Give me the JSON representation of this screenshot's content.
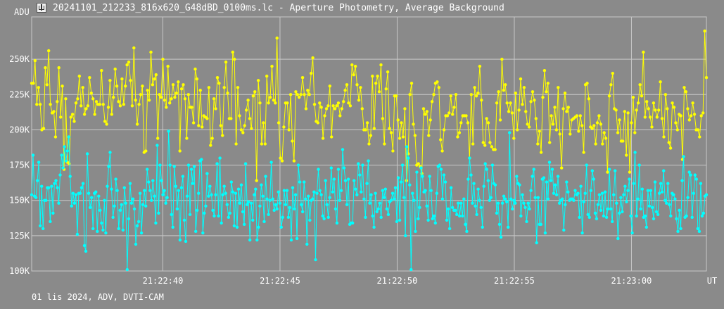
{
  "window": {
    "title": "20241101_212233_816x620_G48dBD_0100ms.lc - Aperture Photometry, Average Background",
    "icon": "lightcurve-app-icon"
  },
  "footer": {
    "text": "01 lis 2024, ADV, DVTI-CAM"
  },
  "colors": {
    "background": "#8a8a8a",
    "grid": "#c8c8c8",
    "series_target": "#ffff00",
    "series_comparison": "#00ffff",
    "text": "#ffffff"
  },
  "chart_data": {
    "type": "line",
    "yunit": "ADU",
    "xunit": "UT",
    "ylim": [
      100000,
      280000
    ],
    "xlim": [
      "21:22:34.4",
      "21:23:03.2"
    ],
    "grid": true,
    "yticks": [
      {
        "value": 100000,
        "label": "100K"
      },
      {
        "value": 125000,
        "label": "125K"
      },
      {
        "value": 150000,
        "label": "150K"
      },
      {
        "value": 175000,
        "label": "175K"
      },
      {
        "value": 200000,
        "label": "200K"
      },
      {
        "value": 225000,
        "label": "225K"
      },
      {
        "value": 250000,
        "label": "250K"
      }
    ],
    "xticks": [
      {
        "value": "21:22:40",
        "label": "21:22:40"
      },
      {
        "value": "21:22:45",
        "label": "21:22:45"
      },
      {
        "value": "21:22:50",
        "label": "21:22:50"
      },
      {
        "value": "21:22:55",
        "label": "21:22:55"
      },
      {
        "value": "21:23:00",
        "label": "21:23:00"
      }
    ],
    "time_start": "21:22:34.4",
    "time_end": "21:23:03.2",
    "series": [
      {
        "color": "#ffff00",
        "values": [
          233000,
          233000,
          249000,
          218000,
          230000,
          218000,
          200000,
          201000,
          244000,
          232000,
          256000,
          218000,
          212000,
          213000,
          195000,
          220000,
          244000,
          209000,
          231000,
          172000,
          222000,
          177000,
          176000,
          209000,
          211000,
          206000,
          219000,
          222000,
          238000,
          217000,
          230000,
          211000,
          215000,
          217000,
          237000,
          226000,
          222000,
          211000,
          220000,
          218000,
          218000,
          242000,
          218000,
          206000,
          204000,
          216000,
          235000,
          211000,
          223000,
          243000,
          231000,
          220000,
          217000,
          236000,
          218000,
          231000,
          246000,
          248000,
          235000,
          217000,
          258000,
          221000,
          204000,
          218000,
          225000,
          231000,
          184000,
          185000,
          228000,
          221000,
          255000,
          232000,
          236000,
          239000,
          194000,
          225000,
          223000,
          250000,
          221000,
          216000,
          245000,
          219000,
          222000,
          232000,
          223000,
          226000,
          234000,
          185000,
          229000,
          232000,
          222000,
          194000,
          225000,
          216000,
          216000,
          205000,
          243000,
          236000,
          203000,
          228000,
          202000,
          210000,
          209000,
          208000,
          230000,
          189000,
          194000,
          222000,
          215000,
          237000,
          233000,
          203000,
          196000,
          230000,
          248000,
          226000,
          208000,
          208000,
          255000,
          250000,
          190000,
          230000,
          210000,
          200000,
          198000,
          203000,
          214000,
          221000,
          208000,
          201000,
          224000,
          227000,
          164000,
          235000,
          219000,
          190000,
          205000,
          190000,
          238000,
          219000,
          223000,
          245000,
          221000,
          219000,
          265000,
          205000,
          180000,
          178000,
          202000,
          219000,
          219000,
          200000,
          225000,
          192000,
          178000,
          227000,
          225000,
          223000,
          225000,
          237000,
          225000,
          215000,
          228000,
          225000,
          240000,
          251000,
          218000,
          206000,
          205000,
          219000,
          216000,
          194000,
          210000,
          215000,
          217000,
          231000,
          195000,
          217000,
          215000,
          217000,
          219000,
          210000,
          215000,
          220000,
          228000,
          232000,
          219000,
          217000,
          246000,
          239000,
          245000,
          232000,
          221000,
          230000,
          215000,
          200000,
          200000,
          205000,
          190000,
          196000,
          238000,
          201000,
          233000,
          238000,
          227000,
          246000,
          208000,
          190000,
          229000,
          241000,
          201000,
          198000,
          185000,
          224000,
          224000,
          207000,
          194000,
          205000,
          195000,
          215000,
          164000,
          183000,
          225000,
          233000,
          204000,
          196000,
          175000,
          176000,
          174000,
          169000,
          215000,
          211000,
          213000,
          196000,
          207000,
          220000,
          225000,
          233000,
          234000,
          230000,
          193000,
          185000,
          200000,
          210000,
          210000,
          212000,
          224000,
          211000,
          216000,
          225000,
          195000,
          198000,
          205000,
          210000,
          210000,
          210000,
          205000,
          180000,
          225000,
          190000,
          230000,
          224000,
          226000,
          245000,
          221000,
          191000,
          189000,
          208000,
          205000,
          191000,
          188000,
          186000,
          186000,
          219000,
          227000,
          207000,
          250000,
          228000,
          232000,
          219000,
          213000,
          219000,
          212000,
          194000,
          226000,
          200000,
          214000,
          236000,
          218000,
          230000,
          213000,
          204000,
          202000,
          220000,
          227000,
          221000,
          208000,
          190000,
          199000,
          184000,
          223000,
          242000,
          227000,
          233000,
          191000,
          210000,
          204000,
          216000,
          200000,
          230000,
          197000,
          173000,
          215000,
          226000,
          213000,
          216000,
          197000,
          207000,
          208000,
          209000,
          210000,
          199000,
          210000,
          203000,
          184000,
          232000,
          233000,
          222000,
          202000,
          201000,
          203000,
          190000,
          205000,
          210000,
          204000,
          190000,
          198000,
          194000,
          170000,
          224000,
          232000,
          240000,
          215000,
          214000,
          198000,
          207000,
          192000,
          192000,
          213000,
          182000,
          212000,
          170000,
          205000,
          223000,
          198000,
          214000,
          219000,
          232000,
          224000,
          255000,
          209000,
          220000,
          215000,
          209000,
          202000,
          219000,
          214000,
          209000,
          214000,
          234000,
          208000,
          195000,
          225000,
          215000,
          191000,
          187000,
          219000,
          216000,
          205000,
          200000,
          211000,
          210000,
          179000,
          230000,
          227000,
          215000,
          207000,
          210000,
          219000,
          211000,
          200000,
          200000,
          195000,
          210000,
          212000,
          270000,
          237000
        ]
      },
      {
        "color": "#00ffff",
        "values": [
          154000,
          182000,
          153000,
          152000,
          164000,
          177000,
          132000,
          160000,
          130000,
          150000,
          150000,
          159000,
          159000,
          135000,
          160000,
          141000,
          162000,
          164000,
          159000,
          148000,
          168000,
          182000,
          173000,
          188000,
          178000,
          185000,
          195000,
          167000,
          146000,
          155000,
          148000,
          154000,
          126000,
          155000,
          155000,
          159000,
          162000,
          118000,
          114000,
          183000,
          155000,
          145000,
          152000,
          130000,
          155000,
          156000,
          128000,
          153000,
          143000,
          134000,
          129000,
          150000,
          127000,
          160000,
          174000,
          184000,
          158000,
          138000,
          146000,
          165000,
          157000,
          130000,
          143000,
          147000,
          129000,
          159000,
          148000,
          101000,
          137000,
          162000,
          148000,
          151000,
          144000,
          119000,
          132000,
          135000,
          155000,
          127000,
          147000,
          157000,
          146000,
          172000,
          163000,
          157000,
          150000,
          164000,
          153000,
          134000,
          189000,
          141000,
          175000,
          164000,
          154000,
          157000,
          148000,
          152000,
          199000,
          175000,
          140000,
          131000,
          174000,
          160000,
          144000,
          157000,
          122000,
          159000,
          167000,
          136000,
          121000,
          153000,
          175000,
          140000,
          172000,
          162000,
          174000,
          128000,
          143000,
          155000,
          178000,
          179000,
          127000,
          141000,
          146000,
          169000,
          153000,
          160000,
          154000,
          143000,
          139000,
          154000,
          176000,
          139000,
          180000,
          134000,
          154000,
          160000,
          155000,
          147000,
          138000,
          141000,
          163000,
          156000,
          132000,
          155000,
          131000,
          158000,
          148000,
          161000,
          142000,
          133000,
          176000,
          147000,
          149000,
          122000,
          148000,
          136000,
          154000,
          158000,
          122000,
          131000,
          146000,
          161000,
          153000,
          135000,
          167000,
          151000,
          140000,
          150000,
          177000,
          151000,
          143000,
          147000,
          144000,
          156000,
          148000,
          131000,
          138000,
          157000,
          147000,
          157000,
          138000,
          145000,
          122000,
          159000,
          144000,
          154000,
          123000,
          175000,
          163000,
          147000,
          142000,
          163000,
          151000,
          119000,
          153000,
          136000,
          150000,
          151000,
          156000,
          108000,
          155000,
          172000,
          157000,
          154000,
          139000,
          137000,
          164000,
          147000,
          138000,
          152000,
          173000,
          156000,
          165000,
          144000,
          134000,
          172000,
          150000,
          157000,
          186000,
          173000,
          164000,
          147000,
          165000,
          133000,
          134000,
          134000,
          164000,
          158000,
          154000,
          176000,
          168000,
          156000,
          175000,
          151000,
          138000,
          162000,
          178000,
          148000,
          154000,
          139000,
          131000,
          155000,
          142000,
          144000,
          148000,
          138000,
          157000,
          152000,
          158000,
          144000,
          140000,
          149000,
          150000,
          155000,
          151000,
          159000,
          135000,
          166000,
          136000,
          163000,
          175000,
          152000,
          125000,
          188000,
          180000,
          161000,
          101000,
          155000,
          150000,
          128000,
          170000,
          137000,
          145000,
          173000,
          167000,
          156000,
          157000,
          146000,
          136000,
          167000,
          157000,
          137000,
          139000,
          134000,
          155000,
          174000,
          175000,
          172000,
          151000,
          168000,
          163000,
          136000,
          144000,
          130000,
          159000,
          145000,
          143000,
          143000,
          140000,
          148000,
          139000,
          148000,
          139000,
          151000,
          133000,
          128000,
          165000,
          180000,
          168000,
          148000,
          162000,
          146000,
          140000,
          158000,
          150000,
          145000,
          131000,
          160000,
          176000,
          172000,
          164000,
          150000,
          152000,
          175000,
          162000,
          161000,
          141000,
          148000,
          133000,
          124000,
          148000,
          153000,
          151000,
          149000,
          131000,
          198000,
          151000,
          144000,
          150000,
          148000,
          167000,
          162000,
          161000,
          139000,
          154000,
          148000,
          145000,
          135000,
          148000,
          144000,
          157000,
          167000,
          172000,
          152000,
          120000,
          152000,
          133000,
          133000,
          165000,
          166000,
          127000,
          163000,
          151000,
          177000,
          164000,
          172000,
          155000,
          161000,
          154000,
          167000,
          148000,
          150000,
          151000,
          129000,
          147000,
          163000,
          156000,
          150000,
          151000,
          151000,
          150000,
          157000,
          154000,
          155000,
          138000,
          160000,
          127000,
          149000,
          155000,
          175000,
          140000,
          138000,
          157000,
          171000,
          165000,
          141000,
          137000,
          147000,
          154000,
          143000,
          155000,
          139000,
          156000,
          138000,
          144000,
          172000,
          144000,
          135000,
          154000,
          171000,
          148000,
          123000,
          141000,
          152000,
          142000,
          154000,
          160000,
          149000,
          157000,
          165000,
          139000,
          127000,
          162000,
          184000,
          139000,
          151000,
          175000,
          144000,
          158000,
          138000,
          139000,
          131000,
          157000,
          146000,
          157000,
          145000,
          137000,
          163000,
          142000,
          140000,
          155000,
          162000,
          156000,
          171000,
          150000,
          148000,
          162000,
          147000,
          139000,
          155000,
          154000,
          151000,
          137000,
          128000,
          143000,
          130000,
          164000,
          181000,
          138000,
          139000,
          152000,
          170000,
          168000,
          138000,
          155000,
          168000,
          165000,
          130000,
          128000,
          162000,
          139000,
          141000,
          153000,
          154000
        ]
      }
    ]
  }
}
